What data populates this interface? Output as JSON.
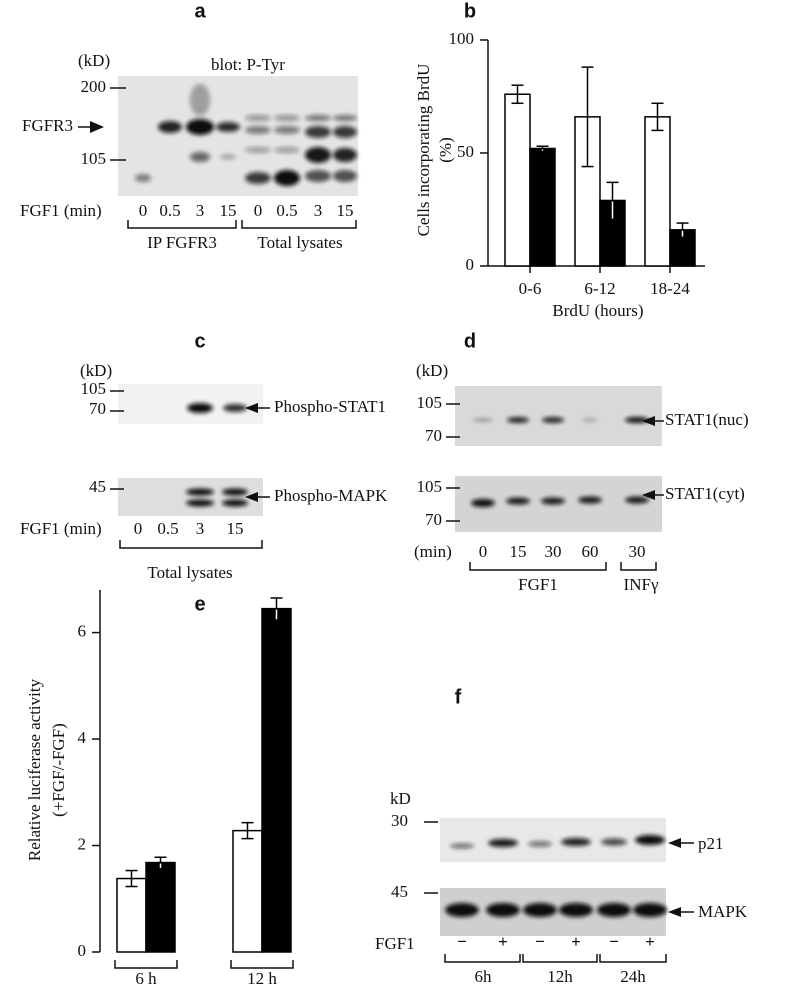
{
  "panels": {
    "a": {
      "label": "a",
      "kd": "(kD)",
      "blot": "blot: P-Tyr",
      "markers": [
        "200",
        "105"
      ],
      "band": "FGFR3",
      "row_label": "FGF1 (min)",
      "lanes": [
        "0",
        "0.5",
        "3",
        "15",
        "0",
        "0.5",
        "3",
        "15"
      ],
      "groups": [
        "IP FGFR3",
        "Total lysates"
      ]
    },
    "c": {
      "label": "c",
      "kd": "(kD)",
      "markers": [
        "105",
        "70",
        "45"
      ],
      "bands": [
        "Phospho-STAT1",
        "Phospho-MAPK"
      ],
      "row_label": "FGF1 (min)",
      "lanes": [
        "0",
        "0.5",
        "3",
        "15"
      ],
      "group": "Total lysates"
    },
    "d": {
      "label": "d",
      "kd": "(kD)",
      "markers": [
        "105",
        "70",
        "105",
        "70"
      ],
      "bands": [
        "STAT1(nuc)",
        "STAT1(cyt)"
      ],
      "row_label": "(min)",
      "lanes": [
        "0",
        "15",
        "30",
        "60",
        "30"
      ],
      "groups": [
        "FGF1",
        "INFγ"
      ]
    },
    "f": {
      "label": "f",
      "kd": "kD",
      "markers": [
        "30",
        "45"
      ],
      "bands": [
        "p21",
        "MAPK"
      ],
      "row_label": "FGF1",
      "lanes": [
        "−",
        "+",
        "−",
        "+",
        "−",
        "+"
      ],
      "groups": [
        "6h",
        "12h",
        "24h"
      ]
    }
  },
  "chart_data": [
    {
      "type": "bar",
      "panel_label": "b",
      "ylabel": [
        "Cells incorporating BrdU",
        "(%)"
      ],
      "xlabel": "BrdU (hours)",
      "categories": [
        "0-6",
        "6-12",
        "18-24"
      ],
      "ylim": [
        0,
        100
      ],
      "yticks": [
        0,
        50,
        100
      ],
      "series": [
        {
          "color": "#ffffff",
          "values": [
            76,
            66,
            66
          ],
          "errors": [
            4,
            22,
            6
          ]
        },
        {
          "color": "#000000",
          "values": [
            52,
            29,
            16
          ],
          "errors": [
            1,
            8,
            3
          ]
        }
      ]
    },
    {
      "type": "bar",
      "panel_label": "e",
      "ylabel": [
        "Relative luciferase activity",
        "(+FGF/-FGF)"
      ],
      "categories": [
        "6 h",
        "12 h"
      ],
      "ylim": [
        0,
        6.8
      ],
      "yticks": [
        0,
        2,
        4,
        6
      ],
      "series": [
        {
          "color": "#ffffff",
          "values": [
            1.38,
            2.28
          ],
          "errors": [
            0.15,
            0.15
          ]
        },
        {
          "color": "#000000",
          "values": [
            1.68,
            6.45
          ],
          "errors": [
            0.1,
            0.2
          ]
        }
      ]
    }
  ]
}
